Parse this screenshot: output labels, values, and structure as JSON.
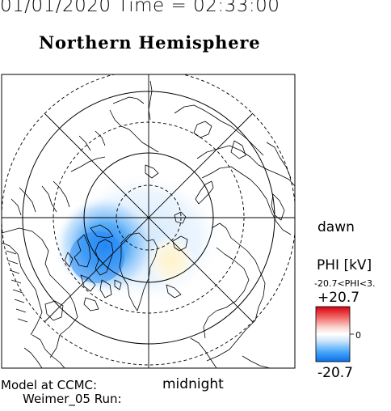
{
  "header": {
    "timestamp": "01/01/2020 Time = 02:33:00",
    "hemisphere_title": "Northern Hemisphere"
  },
  "map": {
    "projection": "polar",
    "dawn_label": "dawn",
    "midnight_label": "midnight"
  },
  "colorbar": {
    "quantity_label": "PHI [kV]",
    "range_text": "-20.7<PHI<3.",
    "max_label": "+20.7",
    "zero_label": "0",
    "min_label": "-20.7",
    "colors": {
      "negative": "#1e88ff",
      "zero": "#ffffff",
      "positive": "#e8202a"
    }
  },
  "footer": {
    "model_line": "Model at CCMC:",
    "run_line": "Weimer_05 Run:"
  }
}
